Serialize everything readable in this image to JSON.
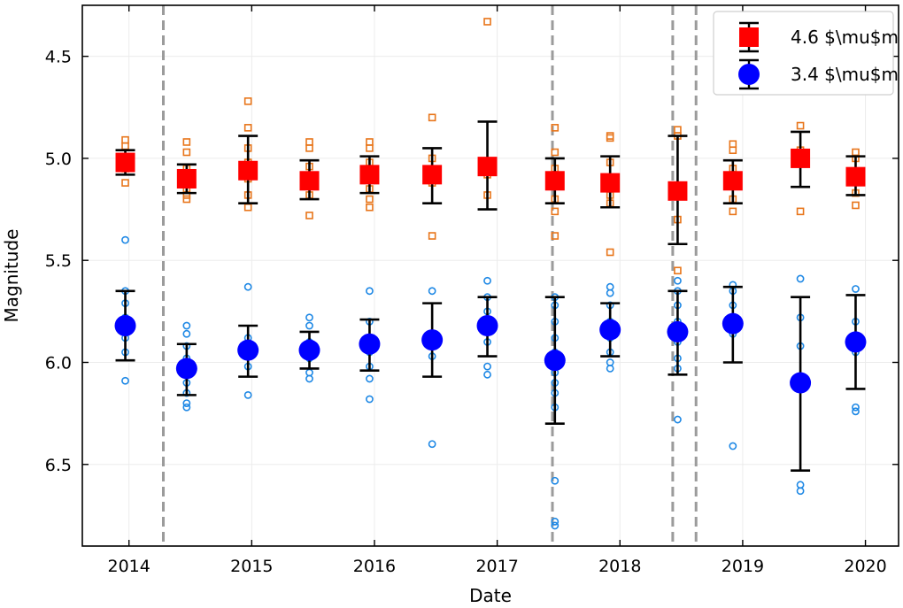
{
  "chart_data": {
    "type": "scatter",
    "title": "",
    "xlabel": "Date",
    "ylabel": "Magnitude",
    "xlim": [
      2013.62,
      2020.27
    ],
    "ylim": [
      6.9,
      4.25
    ],
    "y_inverted": true,
    "grid": true,
    "legend_position": "top-right",
    "x_ticks": [
      2014,
      2015,
      2016,
      2017,
      2018,
      2019,
      2020
    ],
    "x_tick_labels": [
      "2014",
      "2015",
      "2016",
      "2017",
      "2018",
      "2019",
      "2020"
    ],
    "y_ticks": [
      4.5,
      5.0,
      5.5,
      6.0,
      6.5
    ],
    "y_tick_labels": [
      "4.5",
      "5.0",
      "5.5",
      "6.0",
      "6.5"
    ],
    "vertical_lines": [
      2014.28,
      2017.45,
      2018.43,
      2018.62
    ],
    "series": [
      {
        "name": "4.6 μm",
        "legend_label": "4.6 $\\mu$m",
        "marker": "square",
        "color": "#ff0000",
        "raw_color": "#e8751a",
        "epochs": [
          {
            "x": 2013.97,
            "y": 5.02,
            "yerr_low": 4.96,
            "yerr_high": 5.08,
            "raw": [
              4.91,
              4.94,
              5.0,
              5.05,
              5.12
            ]
          },
          {
            "x": 2014.47,
            "y": 5.1,
            "yerr_low": 5.03,
            "yerr_high": 5.17,
            "raw": [
              4.92,
              4.97,
              5.05,
              5.1,
              5.15,
              5.18,
              5.2
            ]
          },
          {
            "x": 2014.97,
            "y": 5.06,
            "yerr_low": 4.89,
            "yerr_high": 5.22,
            "raw": [
              4.72,
              4.85,
              4.95,
              5.02,
              5.1,
              5.18,
              5.24
            ]
          },
          {
            "x": 2015.47,
            "y": 5.11,
            "yerr_low": 5.01,
            "yerr_high": 5.2,
            "raw": [
              4.92,
              4.95,
              5.04,
              5.1,
              5.18,
              5.28
            ]
          },
          {
            "x": 2015.96,
            "y": 5.08,
            "yerr_low": 4.99,
            "yerr_high": 5.17,
            "raw": [
              4.92,
              4.95,
              5.02,
              5.08,
              5.15,
              5.2,
              5.24
            ]
          },
          {
            "x": 2016.47,
            "y": 5.08,
            "yerr_low": 4.95,
            "yerr_high": 5.22,
            "raw": [
              4.8,
              5.0,
              5.06,
              5.12,
              5.38
            ]
          },
          {
            "x": 2016.92,
            "y": 5.04,
            "yerr_low": 4.82,
            "yerr_high": 5.25,
            "raw": [
              4.33,
              5.02,
              5.08,
              5.18
            ]
          },
          {
            "x": 2017.47,
            "y": 5.11,
            "yerr_low": 5.0,
            "yerr_high": 5.22,
            "raw": [
              4.85,
              4.97,
              5.05,
              5.12,
              5.2,
              5.26,
              5.38
            ]
          },
          {
            "x": 2017.92,
            "y": 5.12,
            "yerr_low": 4.99,
            "yerr_high": 5.24,
            "raw": [
              4.89,
              4.9,
              5.02,
              5.1,
              5.18,
              5.22,
              5.46
            ]
          },
          {
            "x": 2018.47,
            "y": 5.16,
            "yerr_low": 4.89,
            "yerr_high": 5.42,
            "raw": [
              4.86,
              4.89,
              5.3,
              5.55
            ]
          },
          {
            "x": 2018.92,
            "y": 5.11,
            "yerr_low": 5.01,
            "yerr_high": 5.22,
            "raw": [
              4.93,
              4.96,
              5.05,
              5.12,
              5.2,
              5.26
            ]
          },
          {
            "x": 2019.47,
            "y": 5.0,
            "yerr_low": 4.87,
            "yerr_high": 5.14,
            "raw": [
              4.84,
              4.96,
              5.26
            ]
          },
          {
            "x": 2019.92,
            "y": 5.09,
            "yerr_low": 4.99,
            "yerr_high": 5.18,
            "raw": [
              4.97,
              5.0,
              5.1,
              5.17,
              5.23
            ]
          }
        ]
      },
      {
        "name": "3.4 μm",
        "legend_label": "3.4 $\\mu$m",
        "marker": "circle",
        "color": "#0000ff",
        "raw_color": "#1e88e5",
        "epochs": [
          {
            "x": 2013.97,
            "y": 5.82,
            "yerr_low": 5.65,
            "yerr_high": 5.99,
            "raw": [
              5.4,
              5.65,
              5.71,
              5.78,
              5.88,
              5.95,
              6.09
            ]
          },
          {
            "x": 2014.47,
            "y": 6.03,
            "yerr_low": 5.91,
            "yerr_high": 6.16,
            "raw": [
              5.82,
              5.86,
              5.92,
              5.98,
              6.04,
              6.1,
              6.15,
              6.2,
              6.22
            ]
          },
          {
            "x": 2014.97,
            "y": 5.94,
            "yerr_low": 5.82,
            "yerr_high": 6.07,
            "raw": [
              5.63,
              5.88,
              5.95,
              6.02,
              6.16
            ]
          },
          {
            "x": 2015.47,
            "y": 5.94,
            "yerr_low": 5.85,
            "yerr_high": 6.03,
            "raw": [
              5.78,
              5.82,
              5.9,
              5.98,
              6.05,
              6.08
            ]
          },
          {
            "x": 2015.96,
            "y": 5.91,
            "yerr_low": 5.79,
            "yerr_high": 6.04,
            "raw": [
              5.65,
              5.8,
              5.88,
              5.95,
              6.02,
              6.08,
              6.18
            ]
          },
          {
            "x": 2016.47,
            "y": 5.89,
            "yerr_low": 5.71,
            "yerr_high": 6.07,
            "raw": [
              5.65,
              5.9,
              5.97,
              6.4
            ]
          },
          {
            "x": 2016.92,
            "y": 5.82,
            "yerr_low": 5.68,
            "yerr_high": 5.97,
            "raw": [
              5.6,
              5.68,
              5.75,
              5.9,
              6.02,
              6.06
            ]
          },
          {
            "x": 2017.47,
            "y": 5.99,
            "yerr_low": 5.68,
            "yerr_high": 6.3,
            "raw": [
              5.68,
              5.72,
              5.8,
              5.88,
              5.95,
              6.05,
              6.1,
              6.15,
              6.22,
              6.58,
              6.78,
              6.8
            ]
          },
          {
            "x": 2017.92,
            "y": 5.84,
            "yerr_low": 5.71,
            "yerr_high": 5.97,
            "raw": [
              5.63,
              5.66,
              5.72,
              5.8,
              5.88,
              5.95,
              6.0,
              6.03
            ]
          },
          {
            "x": 2018.47,
            "y": 5.85,
            "yerr_low": 5.65,
            "yerr_high": 6.06,
            "raw": [
              5.6,
              5.65,
              5.72,
              5.8,
              5.9,
              5.98,
              6.03,
              6.28
            ]
          },
          {
            "x": 2018.92,
            "y": 5.81,
            "yerr_low": 5.63,
            "yerr_high": 6.0,
            "raw": [
              5.62,
              5.65,
              5.72,
              5.78,
              5.86,
              6.41
            ]
          },
          {
            "x": 2019.47,
            "y": 6.1,
            "yerr_low": 5.68,
            "yerr_high": 6.53,
            "raw": [
              5.59,
              5.78,
              5.92,
              6.6,
              6.63
            ]
          },
          {
            "x": 2019.92,
            "y": 5.9,
            "yerr_low": 5.67,
            "yerr_high": 6.13,
            "raw": [
              5.64,
              5.8,
              5.88,
              5.95,
              6.22,
              6.24
            ]
          }
        ]
      }
    ]
  }
}
